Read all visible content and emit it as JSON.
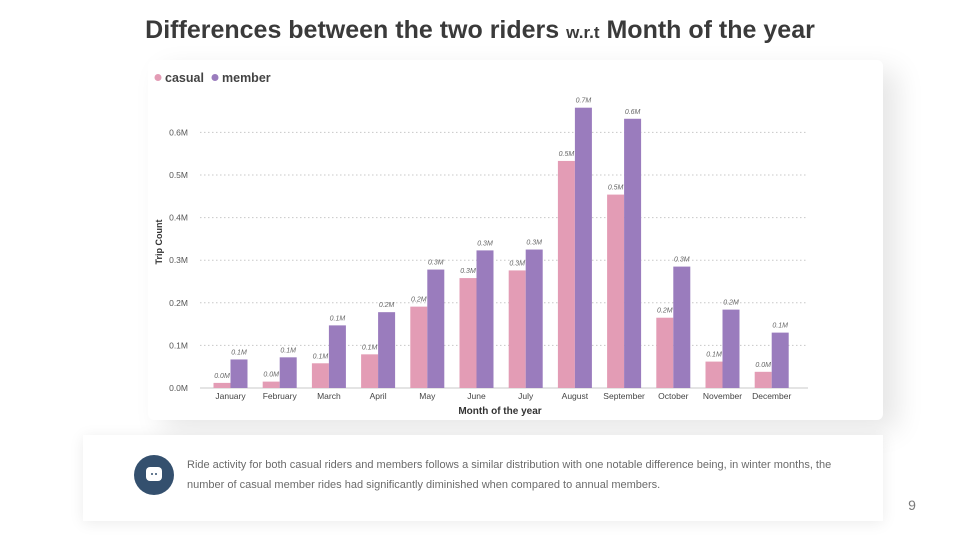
{
  "slide": {
    "title_main_1": "Differences between the two riders",
    "title_small": "w.r.t",
    "title_main_2": "Month of the year",
    "info_text": "Ride activity for both casual riders and members follows a similar distribution with one notable difference being, in winter months, the number of casual member rides had significantly diminished when compared to annual members.",
    "page_number": "9",
    "chat_icon": "chat-bubble-icon"
  },
  "chart_data": {
    "type": "bar",
    "xlabel": "Month of the year",
    "ylabel": "Trip Count",
    "ylim": [
      0,
      700000
    ],
    "yticks": [
      0,
      100000,
      200000,
      300000,
      400000,
      500000,
      600000
    ],
    "ytick_labels": [
      "0.0M",
      "0.1M",
      "0.2M",
      "0.3M",
      "0.4M",
      "0.5M",
      "0.6M"
    ],
    "grid": true,
    "legend_position": "top-left",
    "categories": [
      "January",
      "February",
      "March",
      "April",
      "May",
      "June",
      "July",
      "August",
      "September",
      "October",
      "November",
      "December"
    ],
    "series": [
      {
        "name": "casual",
        "color": "#e39cb5",
        "values": [
          12000,
          15000,
          58000,
          79000,
          191000,
          258000,
          276000,
          533000,
          454000,
          165000,
          62000,
          38000
        ],
        "labels": [
          "0.0M",
          "0.0M",
          "0.1M",
          "0.1M",
          "0.2M",
          "0.3M",
          "0.3M",
          "0.5M",
          "0.5M",
          "0.2M",
          "0.1M",
          "0.0M"
        ]
      },
      {
        "name": "member",
        "color": "#9a7cbd",
        "values": [
          67000,
          72000,
          147000,
          178000,
          278000,
          323000,
          325000,
          658000,
          632000,
          285000,
          184000,
          130000
        ],
        "labels": [
          "0.1M",
          "0.1M",
          "0.1M",
          "0.2M",
          "0.3M",
          "0.3M",
          "0.3M",
          "0.7M",
          "0.6M",
          "0.3M",
          "0.2M",
          "0.1M"
        ]
      }
    ]
  }
}
